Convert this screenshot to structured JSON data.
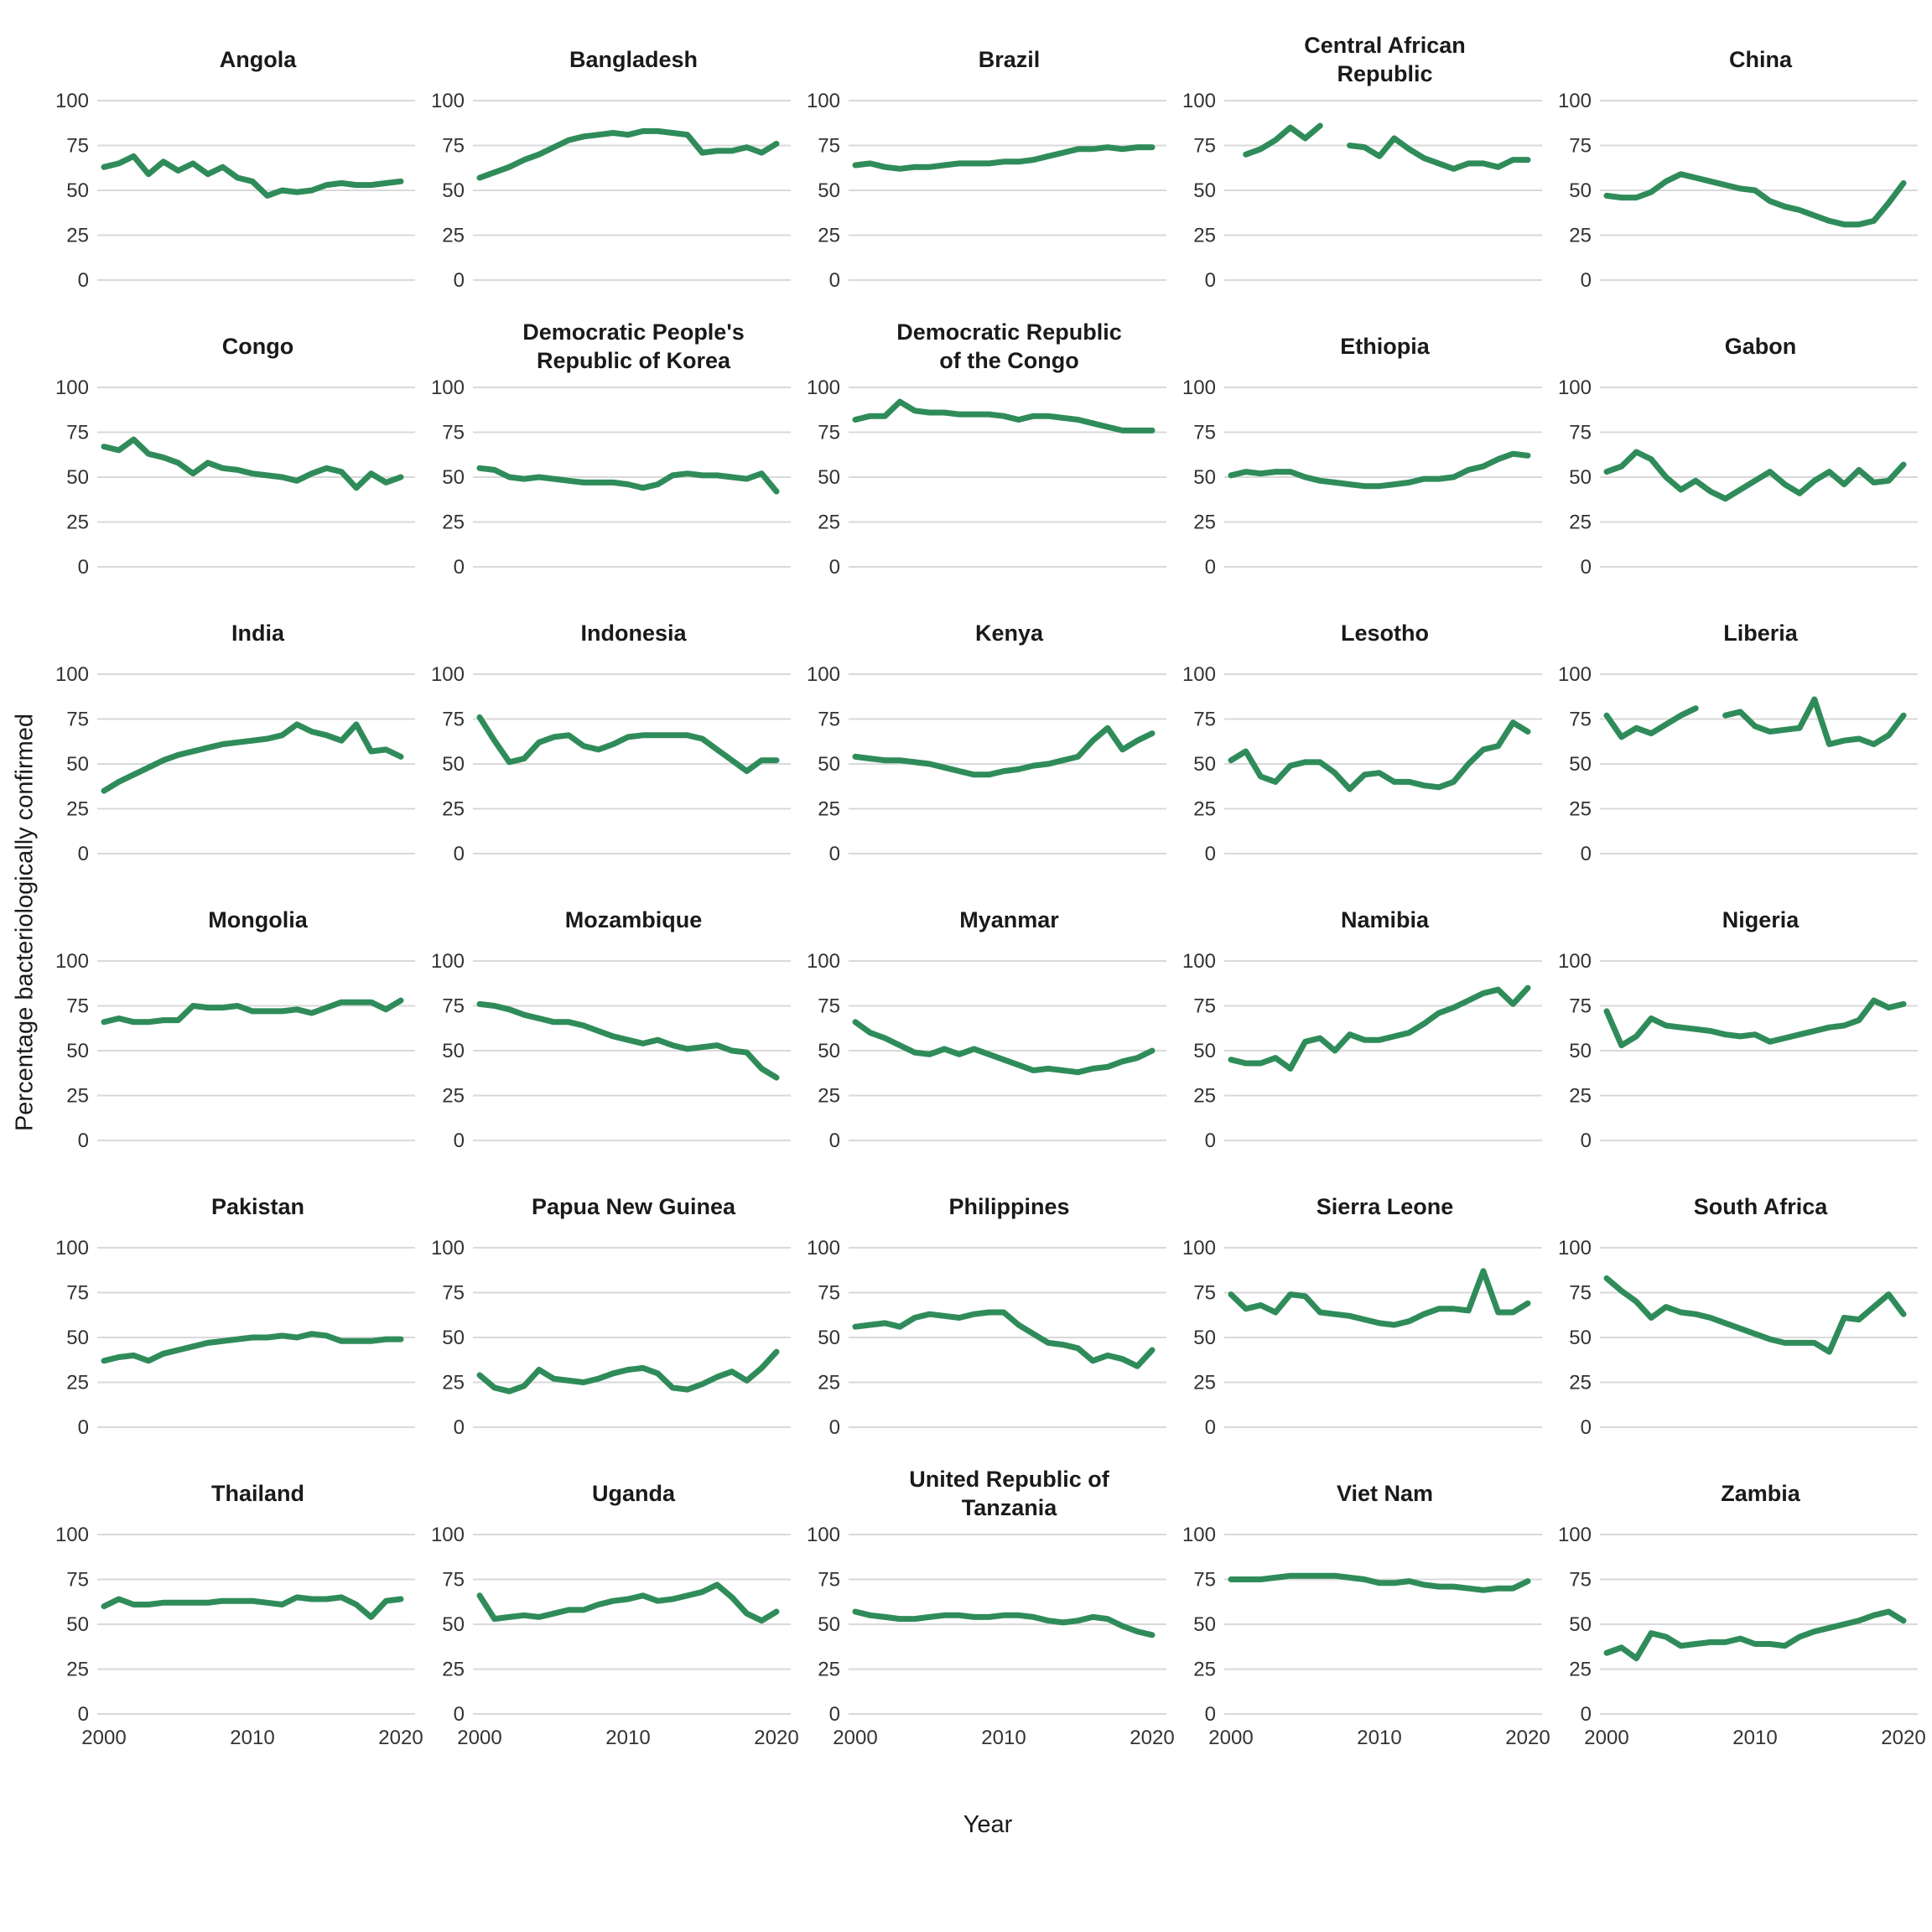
{
  "chart_data": {
    "type": "line",
    "title": "",
    "xlabel": "Year",
    "ylabel": "Percentage bacteriologically confirmed",
    "x": {
      "start_year": 2000,
      "end_year": 2020,
      "ticks": [
        2000,
        2010,
        2020
      ]
    },
    "y": {
      "ticks": [
        0,
        25,
        50,
        75,
        100
      ],
      "range": [
        0,
        100
      ],
      "grid": true
    },
    "layout": {
      "columns": 5,
      "rows": 6,
      "legend": "none"
    },
    "style": {
      "line_color": "#2f8c5a",
      "grid_color": "#d9d9d9",
      "text_color": "#333333",
      "title_color": "#1a1a1a",
      "background": "#ffffff"
    },
    "facets": [
      {
        "title": "Angola",
        "values": [
          63,
          65,
          69,
          59,
          66,
          61,
          65,
          59,
          63,
          57,
          55,
          47,
          50,
          49,
          50,
          53,
          54,
          53,
          53,
          54,
          55
        ]
      },
      {
        "title": "Bangladesh",
        "values": [
          57,
          60,
          63,
          67,
          70,
          74,
          78,
          80,
          81,
          82,
          81,
          83,
          83,
          82,
          81,
          71,
          72,
          72,
          74,
          71,
          76
        ]
      },
      {
        "title": "Brazil",
        "values": [
          64,
          65,
          63,
          62,
          63,
          63,
          64,
          65,
          65,
          65,
          66,
          66,
          67,
          69,
          71,
          73,
          73,
          74,
          73,
          74,
          74
        ]
      },
      {
        "title": "Central African\nRepublic",
        "values": [
          null,
          70,
          73,
          78,
          85,
          79,
          86,
          null,
          75,
          74,
          69,
          79,
          73,
          68,
          65,
          62,
          65,
          65,
          63,
          67,
          67
        ]
      },
      {
        "title": "China",
        "values": [
          47,
          46,
          46,
          49,
          55,
          59,
          57,
          55,
          53,
          51,
          50,
          44,
          41,
          39,
          36,
          33,
          31,
          31,
          33,
          43,
          54
        ]
      },
      {
        "title": "Congo",
        "values": [
          67,
          65,
          71,
          63,
          61,
          58,
          52,
          58,
          55,
          54,
          52,
          51,
          50,
          48,
          52,
          55,
          53,
          44,
          52,
          47,
          50
        ]
      },
      {
        "title": "Democratic People's\nRepublic of Korea",
        "values": [
          55,
          54,
          50,
          49,
          50,
          49,
          48,
          47,
          47,
          47,
          46,
          44,
          46,
          51,
          52,
          51,
          51,
          50,
          49,
          52,
          42
        ]
      },
      {
        "title": "Democratic Republic\nof the Congo",
        "values": [
          82,
          84,
          84,
          92,
          87,
          86,
          86,
          85,
          85,
          85,
          84,
          82,
          84,
          84,
          83,
          82,
          80,
          78,
          76,
          76,
          76
        ]
      },
      {
        "title": "Ethiopia",
        "values": [
          51,
          53,
          52,
          53,
          53,
          50,
          48,
          47,
          46,
          45,
          45,
          46,
          47,
          49,
          49,
          50,
          54,
          56,
          60,
          63,
          62
        ]
      },
      {
        "title": "Gabon",
        "values": [
          53,
          56,
          64,
          60,
          50,
          43,
          48,
          42,
          38,
          43,
          48,
          53,
          46,
          41,
          48,
          53,
          46,
          54,
          47,
          48,
          57
        ]
      },
      {
        "title": "India",
        "values": [
          35,
          40,
          44,
          48,
          52,
          55,
          57,
          59,
          61,
          62,
          63,
          64,
          66,
          72,
          68,
          66,
          63,
          72,
          57,
          58,
          54
        ]
      },
      {
        "title": "Indonesia",
        "values": [
          76,
          63,
          51,
          53,
          62,
          65,
          66,
          60,
          58,
          61,
          65,
          66,
          66,
          66,
          66,
          64,
          58,
          52,
          46,
          52,
          52
        ]
      },
      {
        "title": "Kenya",
        "values": [
          54,
          53,
          52,
          52,
          51,
          50,
          48,
          46,
          44,
          44,
          46,
          47,
          49,
          50,
          52,
          54,
          63,
          70,
          58,
          63,
          67
        ]
      },
      {
        "title": "Lesotho",
        "values": [
          52,
          57,
          43,
          40,
          49,
          51,
          51,
          45,
          36,
          44,
          45,
          40,
          40,
          38,
          37,
          40,
          50,
          58,
          60,
          73,
          68
        ]
      },
      {
        "title": "Liberia",
        "values": [
          77,
          65,
          70,
          67,
          72,
          77,
          81,
          null,
          77,
          79,
          71,
          68,
          69,
          70,
          86,
          61,
          63,
          64,
          61,
          66,
          77
        ]
      },
      {
        "title": "Mongolia",
        "values": [
          66,
          68,
          66,
          66,
          67,
          67,
          75,
          74,
          74,
          75,
          72,
          72,
          72,
          73,
          71,
          74,
          77,
          77,
          77,
          73,
          78
        ]
      },
      {
        "title": "Mozambique",
        "values": [
          76,
          75,
          73,
          70,
          68,
          66,
          66,
          64,
          61,
          58,
          56,
          54,
          56,
          53,
          51,
          52,
          53,
          50,
          49,
          40,
          35
        ]
      },
      {
        "title": "Myanmar",
        "values": [
          66,
          60,
          57,
          53,
          49,
          48,
          51,
          48,
          51,
          48,
          45,
          42,
          39,
          40,
          39,
          38,
          40,
          41,
          44,
          46,
          50
        ]
      },
      {
        "title": "Namibia",
        "values": [
          45,
          43,
          43,
          46,
          40,
          55,
          57,
          50,
          59,
          56,
          56,
          58,
          60,
          65,
          71,
          74,
          78,
          82,
          84,
          76,
          85
        ]
      },
      {
        "title": "Nigeria",
        "values": [
          72,
          53,
          58,
          68,
          64,
          63,
          62,
          61,
          59,
          58,
          59,
          55,
          57,
          59,
          61,
          63,
          64,
          67,
          78,
          74,
          76
        ]
      },
      {
        "title": "Pakistan",
        "values": [
          37,
          39,
          40,
          37,
          41,
          43,
          45,
          47,
          48,
          49,
          50,
          50,
          51,
          50,
          52,
          51,
          48,
          48,
          48,
          49,
          49
        ]
      },
      {
        "title": "Papua New Guinea",
        "values": [
          29,
          22,
          20,
          23,
          32,
          27,
          26,
          25,
          27,
          30,
          32,
          33,
          30,
          22,
          21,
          24,
          28,
          31,
          26,
          33,
          42
        ]
      },
      {
        "title": "Philippines",
        "values": [
          56,
          57,
          58,
          56,
          61,
          63,
          62,
          61,
          63,
          64,
          64,
          57,
          52,
          47,
          46,
          44,
          37,
          40,
          38,
          34,
          43
        ]
      },
      {
        "title": "Sierra Leone",
        "values": [
          74,
          66,
          68,
          64,
          74,
          73,
          64,
          63,
          62,
          60,
          58,
          57,
          59,
          63,
          66,
          66,
          65,
          87,
          64,
          64,
          69
        ]
      },
      {
        "title": "South Africa",
        "values": [
          83,
          76,
          70,
          61,
          67,
          64,
          63,
          61,
          58,
          55,
          52,
          49,
          47,
          47,
          47,
          42,
          61,
          60,
          67,
          74,
          63
        ]
      },
      {
        "title": "Thailand",
        "values": [
          60,
          64,
          61,
          61,
          62,
          62,
          62,
          62,
          63,
          63,
          63,
          62,
          61,
          65,
          64,
          64,
          65,
          61,
          54,
          63,
          64
        ]
      },
      {
        "title": "Uganda",
        "values": [
          66,
          53,
          54,
          55,
          54,
          56,
          58,
          58,
          61,
          63,
          64,
          66,
          63,
          64,
          66,
          68,
          72,
          65,
          56,
          52,
          57
        ]
      },
      {
        "title": "United Republic of\nTanzania",
        "values": [
          57,
          55,
          54,
          53,
          53,
          54,
          55,
          55,
          54,
          54,
          55,
          55,
          54,
          52,
          51,
          52,
          54,
          53,
          49,
          46,
          44
        ]
      },
      {
        "title": "Viet Nam",
        "values": [
          75,
          75,
          75,
          76,
          77,
          77,
          77,
          77,
          76,
          75,
          73,
          73,
          74,
          72,
          71,
          71,
          70,
          69,
          70,
          70,
          74
        ]
      },
      {
        "title": "Zambia",
        "values": [
          34,
          37,
          31,
          45,
          43,
          38,
          39,
          40,
          40,
          42,
          39,
          39,
          38,
          43,
          46,
          48,
          50,
          52,
          55,
          57,
          52
        ]
      }
    ]
  }
}
